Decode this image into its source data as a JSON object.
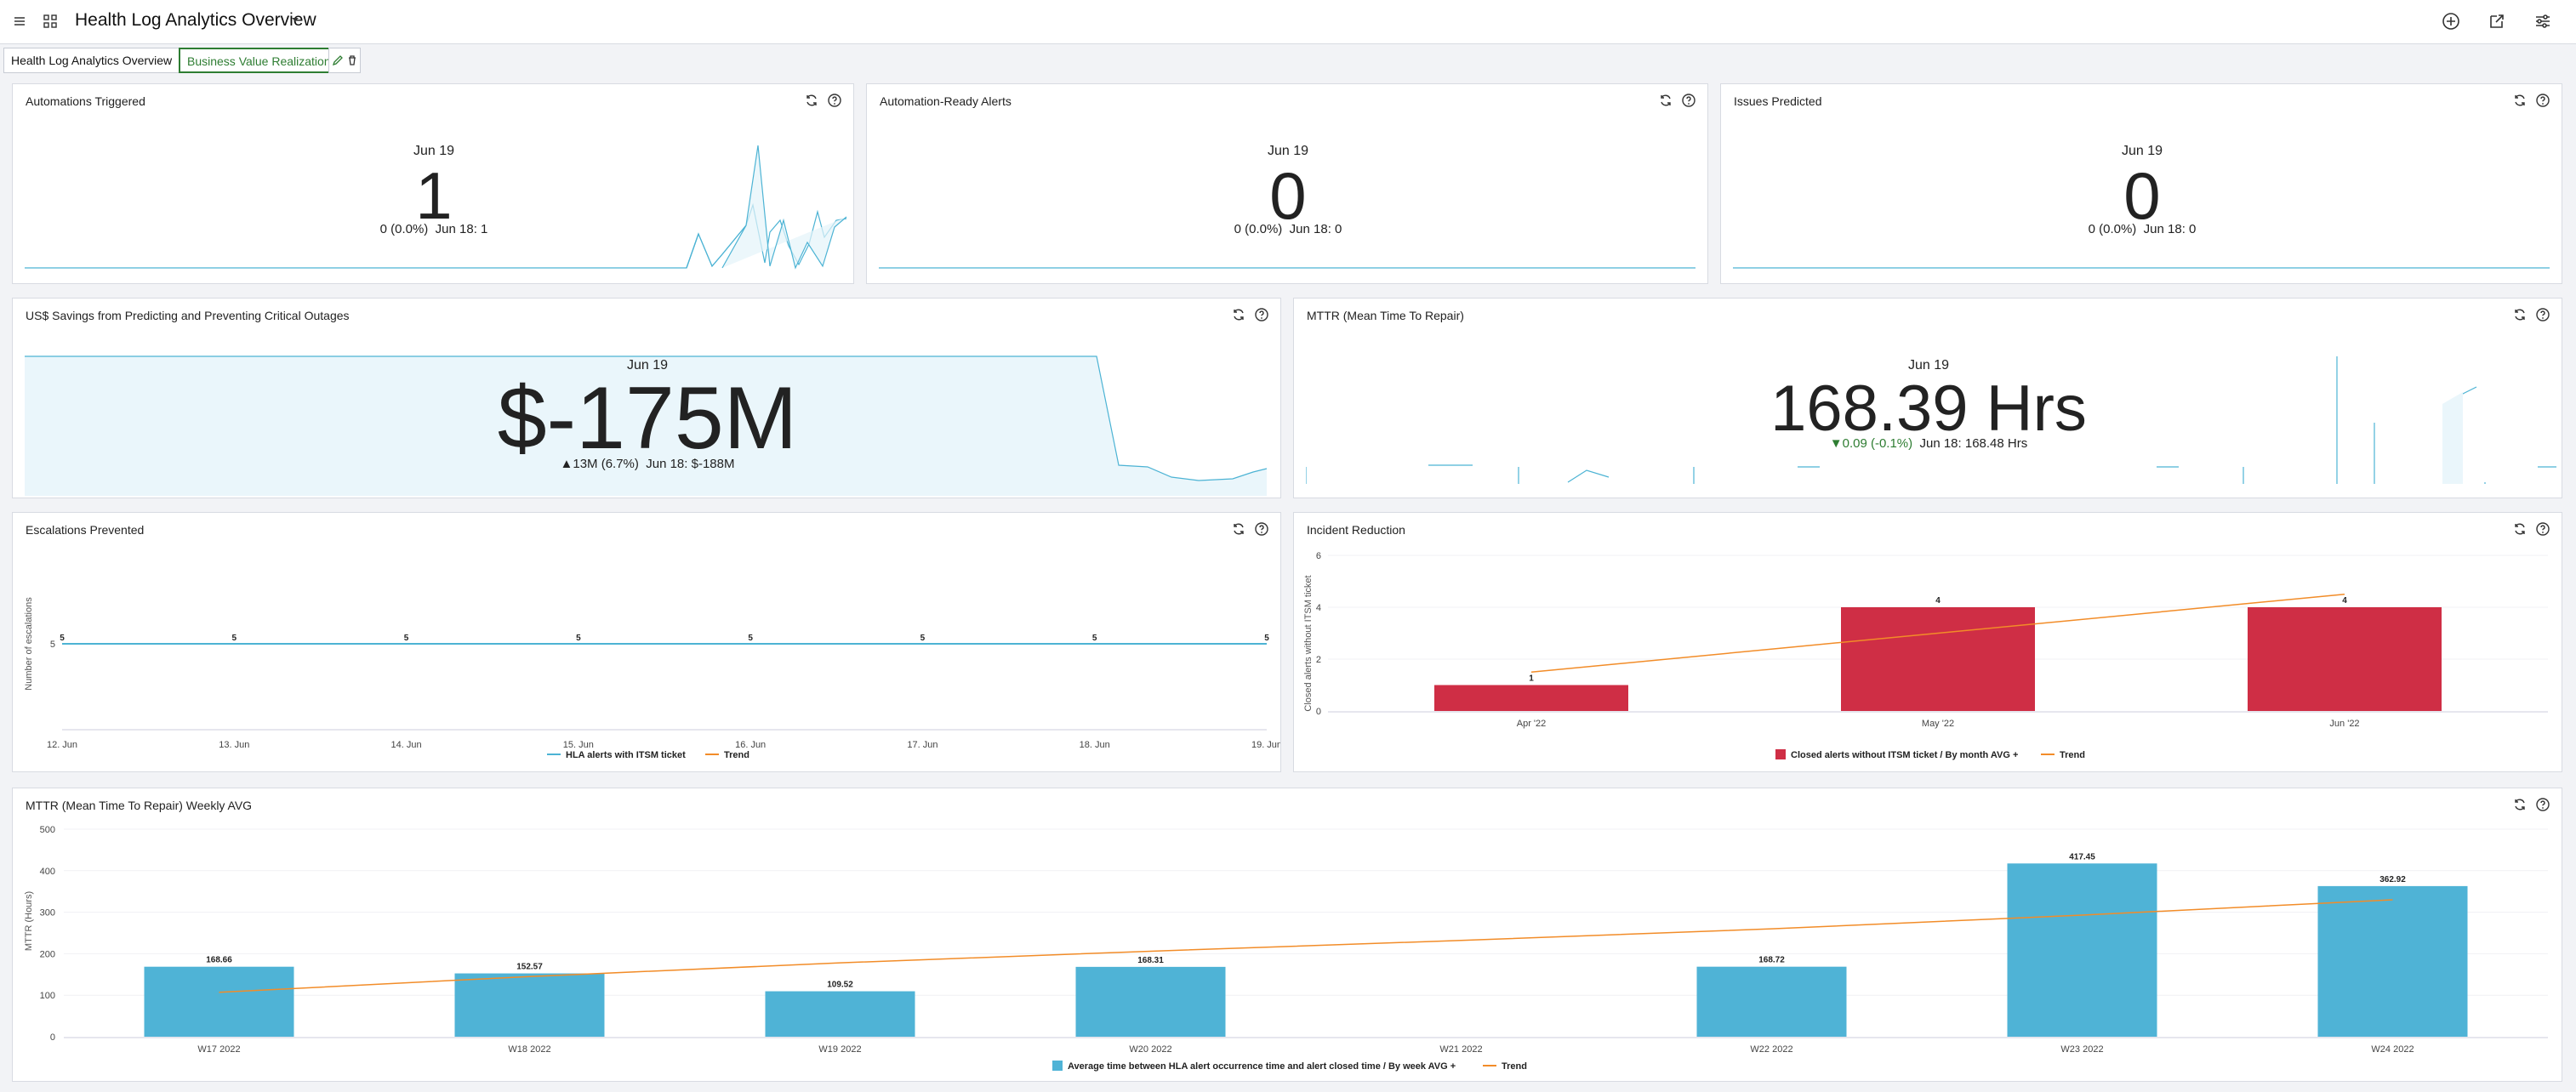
{
  "header": {
    "title": "Health Log Analytics Overview"
  },
  "tabs": [
    {
      "label": "Health Log Analytics Overview"
    },
    {
      "label": "Business Value Realization"
    }
  ],
  "panels": {
    "automations_triggered": {
      "title": "Automations Triggered",
      "date": "Jun 19",
      "value": "1",
      "delta": "0 (0.0%)",
      "prev": "Jun 18: 1"
    },
    "automation_ready": {
      "title": "Automation-Ready Alerts",
      "date": "Jun 19",
      "value": "0",
      "delta": "0 (0.0%)",
      "prev": "Jun 18: 0"
    },
    "issues_predicted": {
      "title": "Issues Predicted",
      "date": "Jun 19",
      "value": "0",
      "delta": "0 (0.0%)",
      "prev": "Jun 18: 0"
    },
    "savings": {
      "title": "US$ Savings from Predicting and Preventing Critical Outages",
      "date": "Jun 19",
      "value": "$-175M",
      "delta": "▲13M (6.7%)",
      "prev": "Jun 18: $-188M"
    },
    "mttr": {
      "title": "MTTR (Mean Time To Repair)",
      "date": "Jun 19",
      "value": "168.39 Hrs",
      "delta": "▼0.09 (-0.1%)",
      "prev": "Jun 18: 168.48 Hrs"
    },
    "escalations": {
      "title": "Escalations Prevented"
    },
    "incident": {
      "title": "Incident Reduction"
    },
    "mttr_weekly": {
      "title": "MTTR (Mean Time To Repair) Weekly AVG"
    }
  },
  "colors": {
    "accent_green": "#2e7d32",
    "line_blue": "#4cb3d4",
    "bar_red": "#cf2e45",
    "bar_blue": "#4fb3d6",
    "trend_orange": "#f28c28",
    "delta_green": "#2e7d32"
  },
  "chart_data": [
    {
      "type": "line",
      "ylabel": "Number of escalations",
      "x": [
        "12. Jun",
        "13. Jun",
        "14. Jun",
        "15. Jun",
        "16. Jun",
        "17. Jun",
        "18. Jun",
        "19. Jun"
      ],
      "yticks": [
        "5"
      ],
      "series": [
        {
          "name": "HLA alerts with ITSM ticket",
          "values": [
            5,
            5,
            5,
            5,
            5,
            5,
            5,
            5
          ]
        },
        {
          "name": "Trend",
          "values": [
            5,
            5,
            5,
            5,
            5,
            5,
            5,
            5
          ]
        }
      ],
      "ylim": [
        0,
        10
      ]
    },
    {
      "type": "bar",
      "ylabel": "Closed alerts without ITSM ticket",
      "categories": [
        "Apr '22",
        "May '22",
        "Jun '22"
      ],
      "yticks": [
        "0",
        "2",
        "4",
        "6"
      ],
      "series": [
        {
          "name": "Closed alerts without ITSM ticket / By month AVG +",
          "values": [
            1,
            4,
            4
          ]
        },
        {
          "name": "Trend",
          "values": [
            1.5,
            3,
            4.5
          ]
        }
      ],
      "ylim": [
        0,
        6
      ]
    },
    {
      "type": "bar",
      "ylabel": "MTTR (Hours)",
      "categories": [
        "W17 2022",
        "W18 2022",
        "W19 2022",
        "W20 2022",
        "W21 2022",
        "W22 2022",
        "W23 2022",
        "W24 2022"
      ],
      "yticks": [
        "0",
        "100",
        "200",
        "300",
        "400",
        "500"
      ],
      "series": [
        {
          "name": "Average time between HLA alert occurrence time and alert closed time / By week AVG +",
          "values": [
            168.66,
            152.57,
            109.52,
            168.31,
            null,
            168.72,
            417.45,
            362.92
          ],
          "labels": [
            "168.66",
            "152.57",
            "109.52",
            "168.31",
            "",
            "168.72",
            "417.45",
            "362.92"
          ]
        },
        {
          "name": "Trend",
          "values": [
            107,
            145,
            178,
            206,
            232,
            260,
            293,
            330
          ]
        }
      ],
      "ylim": [
        0,
        500
      ]
    }
  ]
}
